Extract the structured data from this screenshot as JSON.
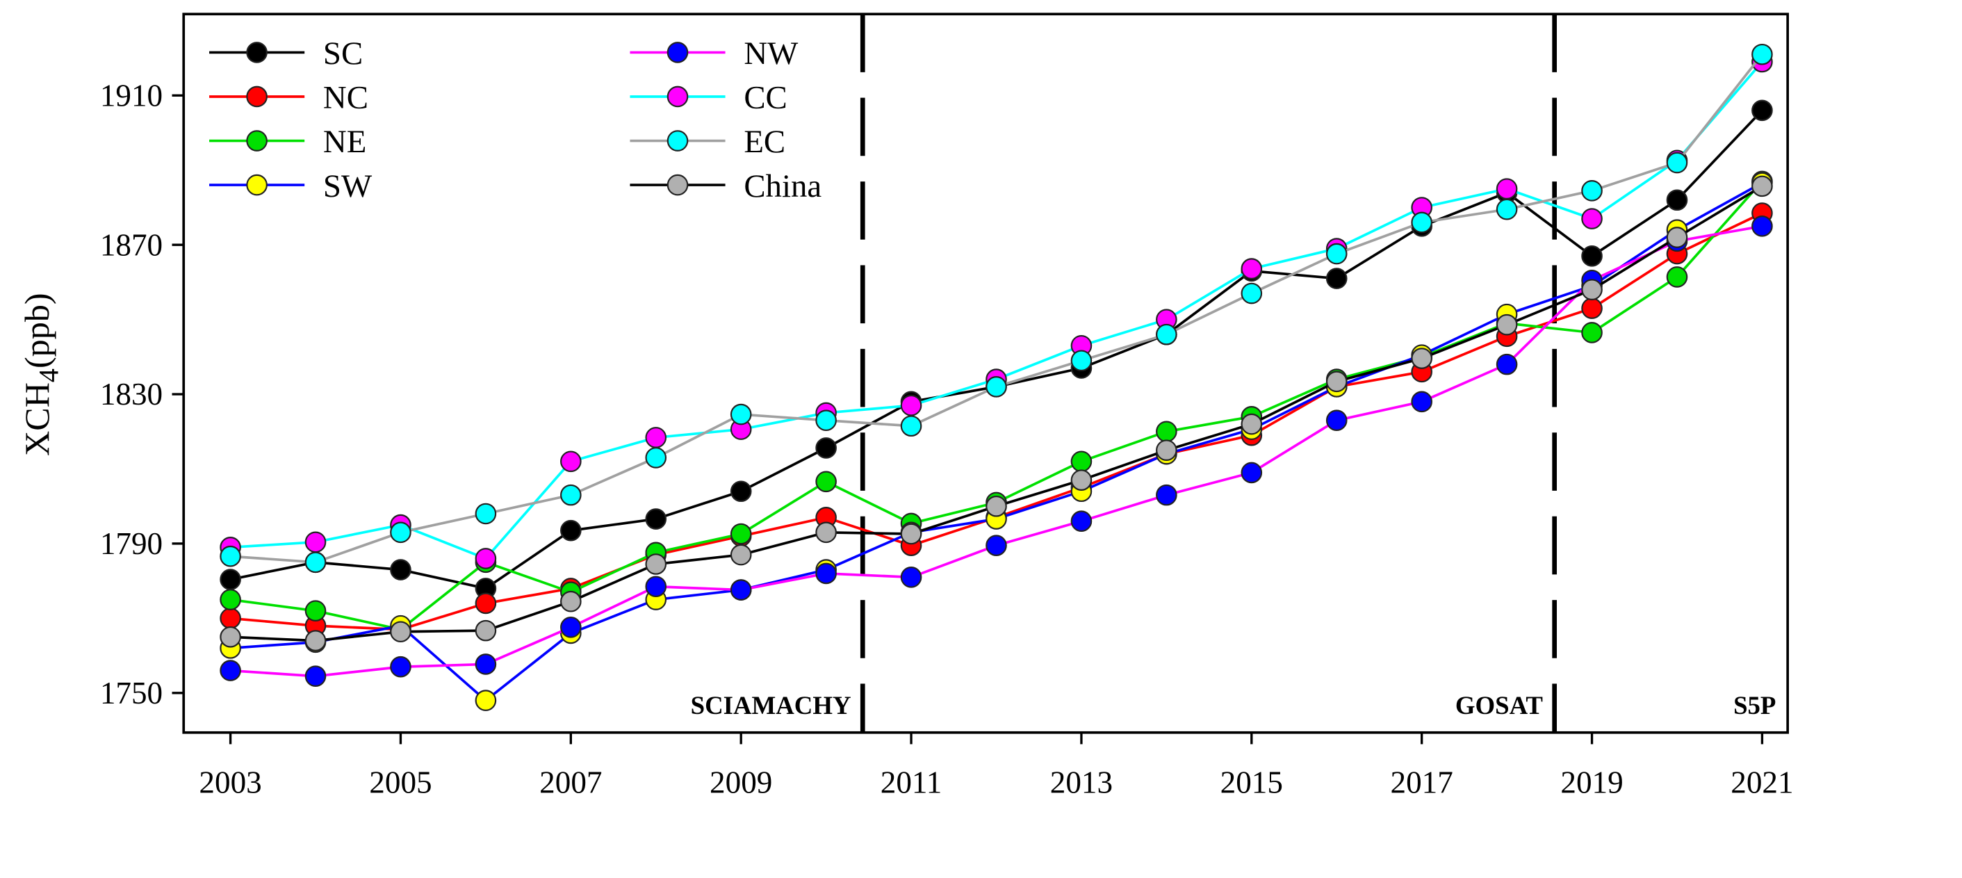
{
  "chart_data": {
    "type": "line",
    "title": "",
    "xlabel": "",
    "ylabel": "XCH",
    "ylabel_subscript": "4",
    "ylabel_unit": "(ppb)",
    "xlim": [
      2002.45,
      2021.3
    ],
    "ylim": [
      1739.4,
      1931.8
    ],
    "x": [
      2003,
      2004,
      2005,
      2006,
      2007,
      2008,
      2009,
      2010,
      2011,
      2012,
      2013,
      2014,
      2015,
      2016,
      2017,
      2018,
      2019,
      2020,
      2021
    ],
    "xticks": [
      "2003",
      "2005",
      "2007",
      "2009",
      "2011",
      "2013",
      "2015",
      "2017",
      "2019",
      "2021"
    ],
    "xtick_values": [
      2003,
      2005,
      2007,
      2009,
      2011,
      2013,
      2015,
      2017,
      2019,
      2021
    ],
    "yticks": [
      "1750",
      "1790",
      "1830",
      "1870",
      "1910"
    ],
    "ytick_values": [
      1750,
      1790,
      1830,
      1870,
      1910
    ],
    "grid": false,
    "legend_placement": "top-left",
    "periods": [
      {
        "label": "SCIAMACHY",
        "end": 2010.43
      },
      {
        "label": "GOSAT",
        "end": 2018.56
      },
      {
        "label": "S5P",
        "end": 2021.3
      }
    ],
    "series": [
      {
        "name": "SC",
        "line": "#000000",
        "marker": "#000000",
        "values": [
          1780.4,
          1785,
          1783,
          1778,
          1793.5,
          1796.6,
          1804,
          1815.6,
          1828,
          1832,
          1837,
          1846,
          1863,
          1861,
          1875,
          1884,
          1867,
          1882,
          1906
        ]
      },
      {
        "name": "NC",
        "line": "#ff0000",
        "marker": "#ff0000",
        "values": [
          1770,
          1768,
          1767,
          1774,
          1778,
          1787,
          1792,
          1797,
          1789.5,
          1797,
          1805,
          1814,
          1819,
          1832,
          1836,
          1845.5,
          1853,
          1867.6,
          1878.5
        ]
      },
      {
        "name": "NE",
        "line": "#00e000",
        "marker": "#00e000",
        "values": [
          1775,
          1772,
          1767,
          1785,
          1777,
          1787.6,
          1792.6,
          1806.6,
          1795.4,
          1801,
          1812,
          1820,
          1824,
          1834,
          1840,
          1849,
          1846.5,
          1861.4,
          1887
        ]
      },
      {
        "name": "SW",
        "line": "#0000ff",
        "marker": "#ffff00",
        "values": [
          1762,
          1763.6,
          1768,
          1748,
          1766,
          1775,
          1777.6,
          1783,
          1793,
          1796.6,
          1804,
          1814,
          1820.6,
          1832,
          1840.5,
          1851.4,
          1859,
          1874,
          1886.6
        ]
      },
      {
        "name": "NW",
        "line": "#ff00ff",
        "marker": "#0000ff",
        "values": [
          1756,
          1754.5,
          1757,
          1757.7,
          1767.6,
          1778.5,
          1777.6,
          1782,
          1781,
          1789.5,
          1796,
          1803,
          1809,
          1823,
          1828,
          1838,
          1860.5,
          1871,
          1875
        ]
      },
      {
        "name": "CC",
        "line": "#00ffff",
        "marker": "#ff00ff",
        "values": [
          1789,
          1790.4,
          1795,
          1786,
          1812,
          1818.4,
          1820.6,
          1825,
          1827,
          1834,
          1843,
          1850,
          1863.6,
          1869,
          1880,
          1885,
          1877,
          1892.6,
          1919
        ]
      },
      {
        "name": "EC",
        "line": "#a0a0a0",
        "marker": "#00ffff",
        "values": [
          1786.6,
          1785,
          1793,
          1798,
          1803,
          1813,
          1824.6,
          1823,
          1821.5,
          1832,
          1839,
          1846,
          1857,
          1867.6,
          1876,
          1879.5,
          1884.5,
          1892,
          1921
        ]
      },
      {
        "name": "China",
        "line": "#000000",
        "marker": "#b0b0b0",
        "values": [
          1765,
          1764,
          1766.4,
          1766.7,
          1774.5,
          1784.5,
          1787,
          1793,
          1792.6,
          1800,
          1807,
          1815,
          1822,
          1833.4,
          1839.6,
          1848.6,
          1858,
          1872,
          1885.7
        ]
      }
    ]
  }
}
